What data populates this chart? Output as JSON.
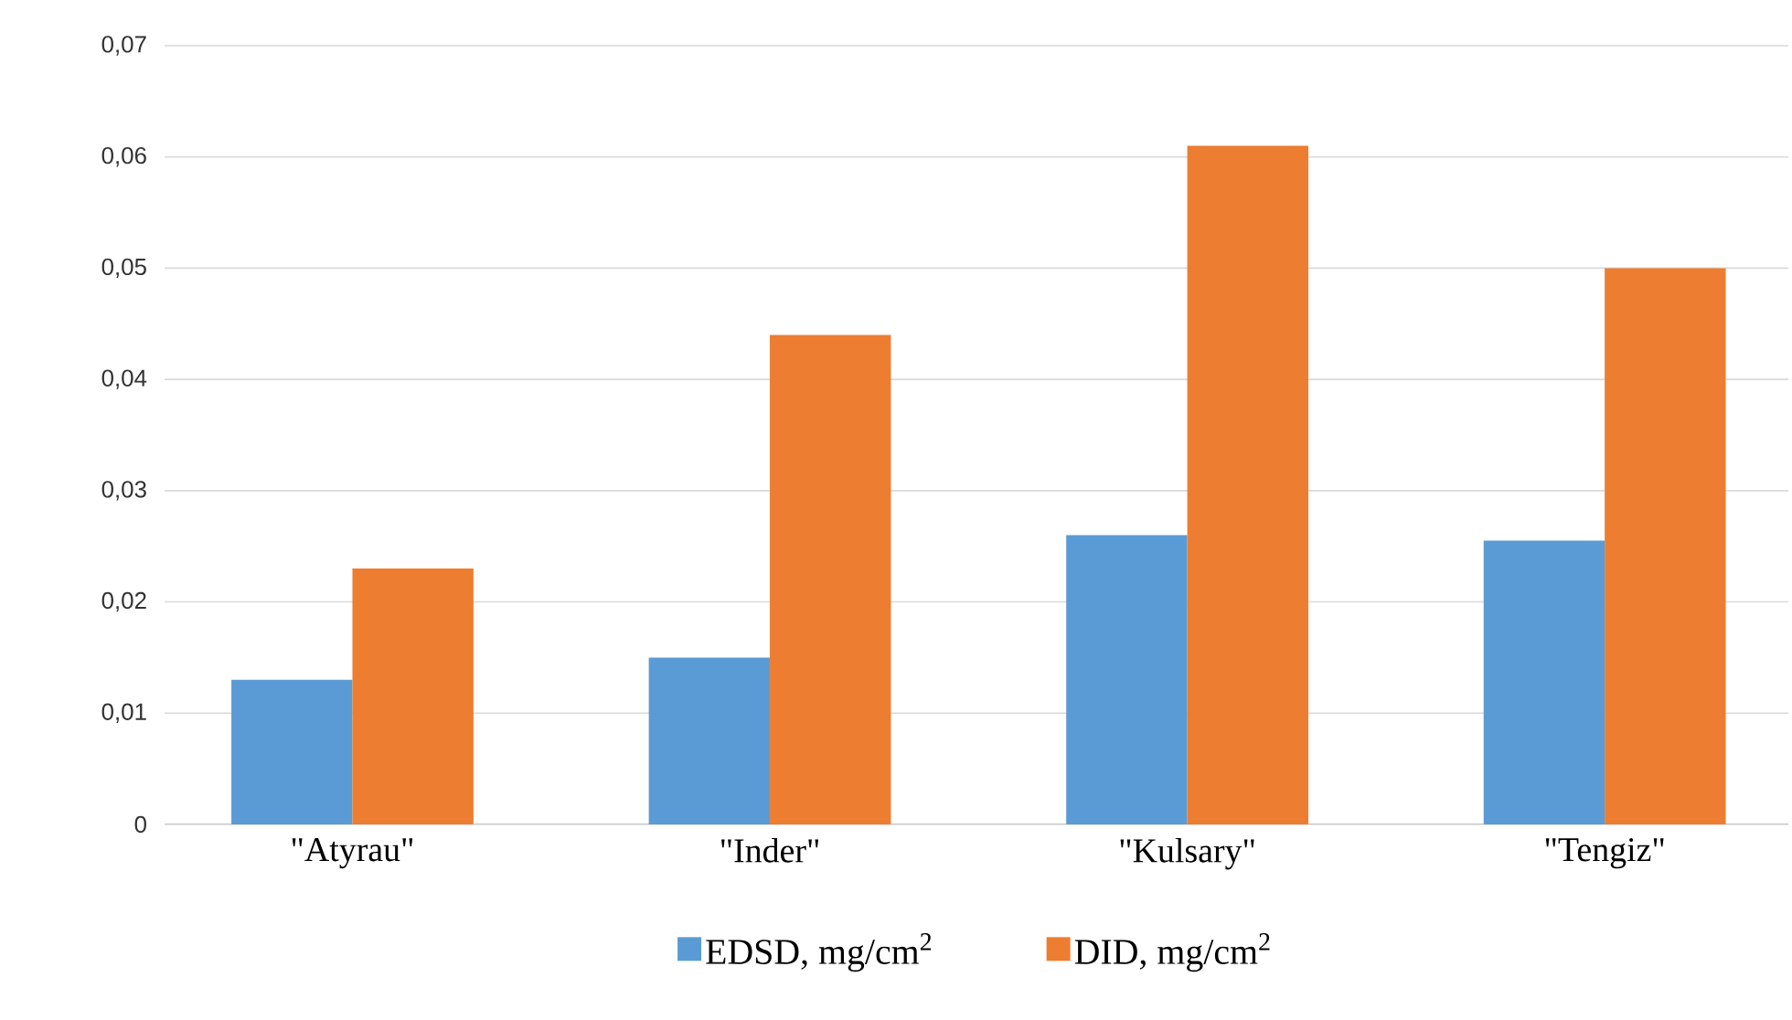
{
  "chart_data": {
    "type": "bar",
    "categories": [
      "\"Atyrau\"",
      "\"Inder\"",
      "\"Kulsary\"",
      "\"Tengiz\""
    ],
    "series": [
      {
        "name": "EDSD, mg/cm$^{2}$",
        "color": "#5b9bd5",
        "values": [
          0.013,
          0.015,
          0.026,
          0.0255
        ]
      },
      {
        "name": "DID, mg/cm$^{2}$",
        "color": "#ed7d31",
        "values": [
          0.023,
          0.044,
          0.061,
          0.05
        ]
      }
    ],
    "ylim": [
      0,
      0.07
    ],
    "yticks": [
      0,
      {
        "value": 0.01,
        "label": "0,01"
      },
      {
        "value": 0.02,
        "label": "0,02"
      },
      {
        "value": 0.03,
        "label": "0,03"
      },
      {
        "value": 0.04,
        "label": "0,04"
      },
      {
        "value": 0.05,
        "label": "0,05"
      },
      {
        "value": 0.06,
        "label": "0,06"
      },
      {
        "value": 0.07,
        "label": "0,07"
      }
    ],
    "grid": "y",
    "legend": "bottom"
  }
}
